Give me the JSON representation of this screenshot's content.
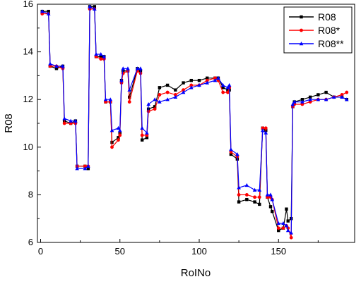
{
  "chart_data": {
    "type": "line",
    "xlabel": "RoINo",
    "ylabel": "R08",
    "xlim": [
      -2,
      198
    ],
    "ylim": [
      6,
      16
    ],
    "xticks": [
      0,
      50,
      100,
      150
    ],
    "yticks": [
      6,
      8,
      10,
      12,
      14,
      16
    ],
    "xtick_labels": [
      "0",
      "50",
      "100",
      "150"
    ],
    "ytick_labels": [
      "6",
      "8",
      "10",
      "12",
      "14",
      "16"
    ],
    "legend_position": "top-right",
    "grid": false,
    "series": [
      {
        "name": "R08",
        "color": "#000000",
        "marker": "square",
        "x": [
          1,
          5,
          6,
          10,
          14,
          15,
          19,
          22,
          23,
          28,
          30,
          31,
          34,
          35,
          38,
          40,
          41,
          44,
          45,
          49,
          50,
          51,
          52,
          55,
          56,
          61,
          63,
          64,
          67,
          68,
          72,
          75,
          80,
          85,
          90,
          95,
          100,
          105,
          110,
          112,
          115,
          118,
          119,
          120,
          124,
          125,
          130,
          135,
          138,
          140,
          142,
          143,
          145,
          146,
          150,
          153,
          155,
          156,
          158,
          159,
          160,
          165,
          170,
          175,
          180,
          185,
          190,
          193
        ],
        "values": [
          15.7,
          15.7,
          13.4,
          13.3,
          13.4,
          11.1,
          11.0,
          11.1,
          9.2,
          9.2,
          9.1,
          15.9,
          15.9,
          13.8,
          13.8,
          13.8,
          11.9,
          11.9,
          10.2,
          10.4,
          10.6,
          12.8,
          13.2,
          13.2,
          12.1,
          13.3,
          13.2,
          10.3,
          10.4,
          11.6,
          11.7,
          12.5,
          12.6,
          12.4,
          12.7,
          12.8,
          12.8,
          12.9,
          12.9,
          12.9,
          12.5,
          12.4,
          12.4,
          9.7,
          9.5,
          7.7,
          7.8,
          7.7,
          7.6,
          10.8,
          10.7,
          7.9,
          7.5,
          7.3,
          6.5,
          6.6,
          7.4,
          6.9,
          7.0,
          11.7,
          11.9,
          12.0,
          12.1,
          12.2,
          12.3,
          12.1,
          12.1,
          12.0
        ]
      },
      {
        "name": "R08*",
        "color": "#ff0000",
        "marker": "circle",
        "x": [
          1,
          5,
          6,
          10,
          14,
          15,
          19,
          22,
          23,
          28,
          30,
          31,
          34,
          35,
          38,
          40,
          41,
          44,
          45,
          49,
          50,
          51,
          52,
          55,
          56,
          61,
          63,
          64,
          67,
          68,
          72,
          75,
          80,
          85,
          90,
          95,
          100,
          105,
          110,
          112,
          115,
          118,
          119,
          120,
          124,
          125,
          130,
          135,
          138,
          140,
          142,
          143,
          145,
          146,
          150,
          153,
          155,
          156,
          158,
          159,
          160,
          165,
          170,
          175,
          180,
          185,
          190,
          193
        ],
        "values": [
          15.6,
          15.6,
          13.4,
          13.4,
          13.3,
          11.0,
          11.0,
          11.0,
          9.2,
          9.2,
          9.2,
          15.8,
          15.8,
          13.8,
          13.7,
          13.7,
          11.9,
          11.9,
          10.0,
          10.3,
          10.5,
          12.7,
          13.1,
          13.2,
          11.9,
          13.2,
          13.1,
          10.5,
          10.5,
          11.5,
          11.6,
          12.2,
          12.3,
          12.2,
          12.4,
          12.6,
          12.6,
          12.8,
          12.9,
          12.8,
          12.3,
          12.3,
          12.5,
          9.8,
          9.6,
          8.0,
          8.0,
          7.9,
          7.9,
          10.8,
          10.8,
          7.9,
          7.9,
          7.8,
          6.6,
          6.6,
          6.7,
          6.6,
          6.2,
          11.7,
          11.8,
          11.8,
          11.9,
          12.0,
          12.0,
          12.1,
          12.2,
          12.3
        ]
      },
      {
        "name": "R08**",
        "color": "#0000ff",
        "marker": "triangle",
        "x": [
          1,
          5,
          6,
          10,
          14,
          15,
          19,
          22,
          23,
          28,
          30,
          31,
          34,
          35,
          38,
          40,
          41,
          44,
          45,
          49,
          50,
          51,
          52,
          55,
          56,
          61,
          63,
          64,
          67,
          68,
          72,
          75,
          80,
          85,
          90,
          95,
          100,
          105,
          110,
          112,
          115,
          118,
          119,
          120,
          124,
          125,
          130,
          135,
          138,
          140,
          142,
          143,
          145,
          146,
          150,
          153,
          155,
          156,
          158,
          159,
          160,
          165,
          170,
          175,
          180,
          185,
          190,
          193
        ],
        "values": [
          15.7,
          15.6,
          13.5,
          13.4,
          13.4,
          11.2,
          11.1,
          11.1,
          9.1,
          9.1,
          9.2,
          15.9,
          15.8,
          13.9,
          13.9,
          13.8,
          12.0,
          12.0,
          10.7,
          10.8,
          10.7,
          12.8,
          13.3,
          13.3,
          12.4,
          13.3,
          13.3,
          10.8,
          10.6,
          11.8,
          12.0,
          11.9,
          12.0,
          12.1,
          12.3,
          12.5,
          12.6,
          12.7,
          12.8,
          12.9,
          12.6,
          12.5,
          12.6,
          9.9,
          9.7,
          8.3,
          8.4,
          8.2,
          8.2,
          10.7,
          10.6,
          8.0,
          8.0,
          7.8,
          6.8,
          6.8,
          6.7,
          6.5,
          6.4,
          11.8,
          11.9,
          11.9,
          12.0,
          12.0,
          12.0,
          12.1,
          12.1,
          12.0
        ]
      }
    ]
  }
}
